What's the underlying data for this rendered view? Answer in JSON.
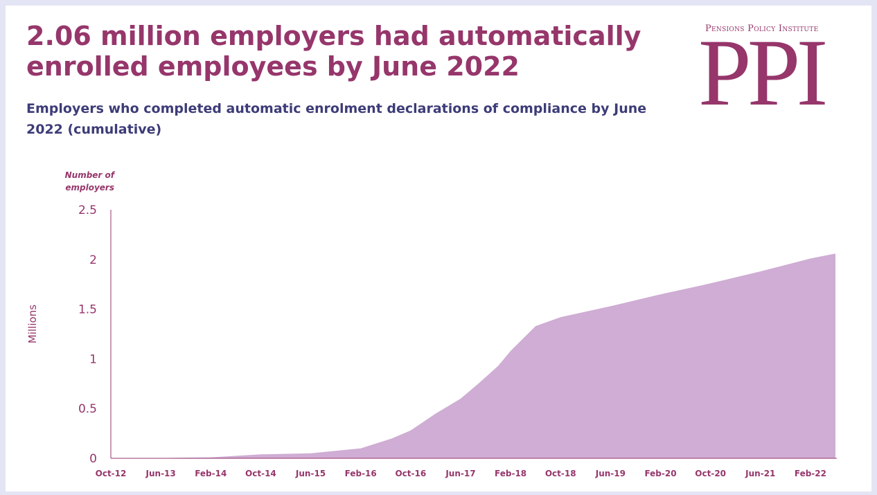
{
  "title": "2.06 million employers had automatically enrolled employees by June 2022",
  "subtitle": "Employers who completed automatic enrolment declarations of compliance by June 2022 (cumulative)",
  "logo": {
    "top_text": "Pensions Policy Institute",
    "main_text": "PPI"
  },
  "colors": {
    "brand": "#96366b",
    "subtitle": "#3d3c78",
    "area": "#cfadd4",
    "background": "#e3e5f5"
  },
  "chart_data": {
    "type": "area",
    "y_unit_label_line1": "Number of",
    "y_unit_label_line2": "employers",
    "ylabel": "Millions",
    "ylim": [
      0,
      2.5
    ],
    "y_ticks": [
      "0",
      "0.5",
      "1",
      "1.5",
      "2",
      "2.5"
    ],
    "x_tick_labels": [
      "Oct-12",
      "Jun-13",
      "Feb-14",
      "Oct-14",
      "Jun-15",
      "Feb-16",
      "Oct-16",
      "Jun-17",
      "Feb-18",
      "Oct-18",
      "Jun-19",
      "Feb-20",
      "Oct-20",
      "Jun-21",
      "Feb-22"
    ],
    "x_start": "Oct-12",
    "x_end": "Jun-22",
    "x": [
      "Oct-12",
      "Jun-13",
      "Feb-14",
      "Oct-14",
      "Jun-15",
      "Feb-16",
      "Jul-16",
      "Oct-16",
      "Feb-17",
      "Jun-17",
      "Sep-17",
      "Dec-17",
      "Feb-18",
      "Jun-18",
      "Oct-18",
      "Jun-19",
      "Feb-20",
      "Oct-20",
      "Jun-21",
      "Feb-22",
      "Jun-22"
    ],
    "values": [
      0.0,
      0.003,
      0.01,
      0.04,
      0.05,
      0.1,
      0.2,
      0.28,
      0.45,
      0.6,
      0.76,
      0.93,
      1.08,
      1.33,
      1.42,
      1.53,
      1.65,
      1.76,
      1.88,
      2.01,
      2.06
    ],
    "grid": false,
    "legend": "none"
  }
}
